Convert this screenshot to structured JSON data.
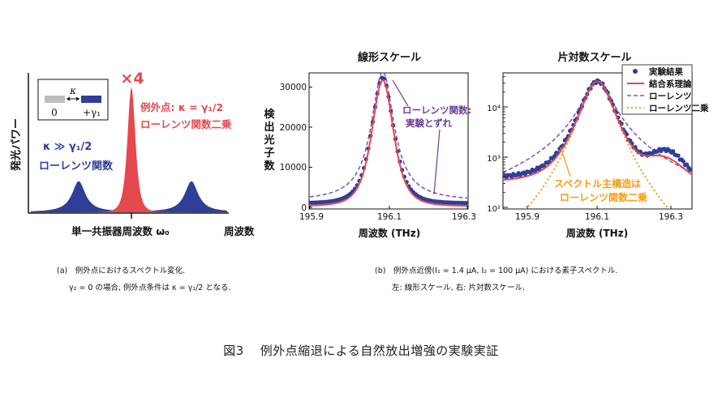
{
  "colors": {
    "blue": "#2f3e98",
    "red": "#e5484d",
    "purple": "#6a3d9a",
    "orange": "#f39c12",
    "grayTab": "#bdbdbd",
    "ink": "#111111"
  },
  "panel_a": {
    "inset": {
      "kappa": "κ",
      "left": "0",
      "right": "+γ₁"
    },
    "times4": "×4",
    "ep_label": "例外点: κ = γ₁/2",
    "ep_label2": "ローレンツ関数二乗",
    "weak_label": "κ ≫ γ₁/2",
    "weak_label2": "ローレンツ関数",
    "ylabel": "発光パワー",
    "xlabel": "単一共振器周波数 ω₀",
    "xlabel2": "周波数"
  },
  "chart_data": [
    {
      "type": "line",
      "title": "線形スケール",
      "xlabel": "周波数 (THz)",
      "ylabel": "検出光子数",
      "xlim": [
        195.9,
        196.3
      ],
      "ylim": [
        0,
        33000
      ],
      "xticks": [
        "195.9",
        "196.1",
        "196.3"
      ],
      "yticks": [
        "0",
        "10000",
        "20000",
        "30000"
      ],
      "annotation": "ローレンツ関数:\n実験とずれ",
      "series": [
        {
          "name": "実験結果",
          "style": "points",
          "center": 196.085,
          "peak": 31500,
          "halfwidth": 0.035,
          "offset": 1000
        },
        {
          "name": "結合系理論",
          "style": "solid",
          "center": 196.085,
          "peak": 31500,
          "halfwidth": 0.035,
          "offset": 300
        },
        {
          "name": "ローレンツ",
          "style": "dashed",
          "center": 196.085,
          "peak": 32500,
          "halfwidth": 0.035,
          "offset": 1500
        }
      ]
    },
    {
      "type": "line",
      "title": "片対数スケール",
      "xlabel": "周波数 (THz)",
      "ylabel": "",
      "xlim": [
        195.85,
        196.35
      ],
      "ylim": [
        100,
        40000
      ],
      "yscale": "log",
      "xticks": [
        "195.9",
        "196.1",
        "196.3"
      ],
      "yticks": [
        "10²",
        "10³",
        "10⁴"
      ],
      "legend_position": "top-right",
      "legend": [
        "実験結果",
        "結合系理論",
        "ローレンツ",
        "ローレンツ二乗"
      ],
      "annotation": "スペクトル主構造は\nローレンツ関数二乗"
    }
  ],
  "captions": {
    "a1": "(a)　例外点におけるスペクトル変化.",
    "a2": "γ₂ = 0 の場合, 例外点条件は κ = γ₁/2 となる.",
    "b1": "(b)　例外点近傍(I₁ = 1.4 μA, I₂ = 100 μA) における素子スペクトル.",
    "b2": "左: 線形スケール, 右: 片対数スケール."
  },
  "title": {
    "num": "図3",
    "text": "例外点縮退による自然放出増強の実験実証"
  }
}
